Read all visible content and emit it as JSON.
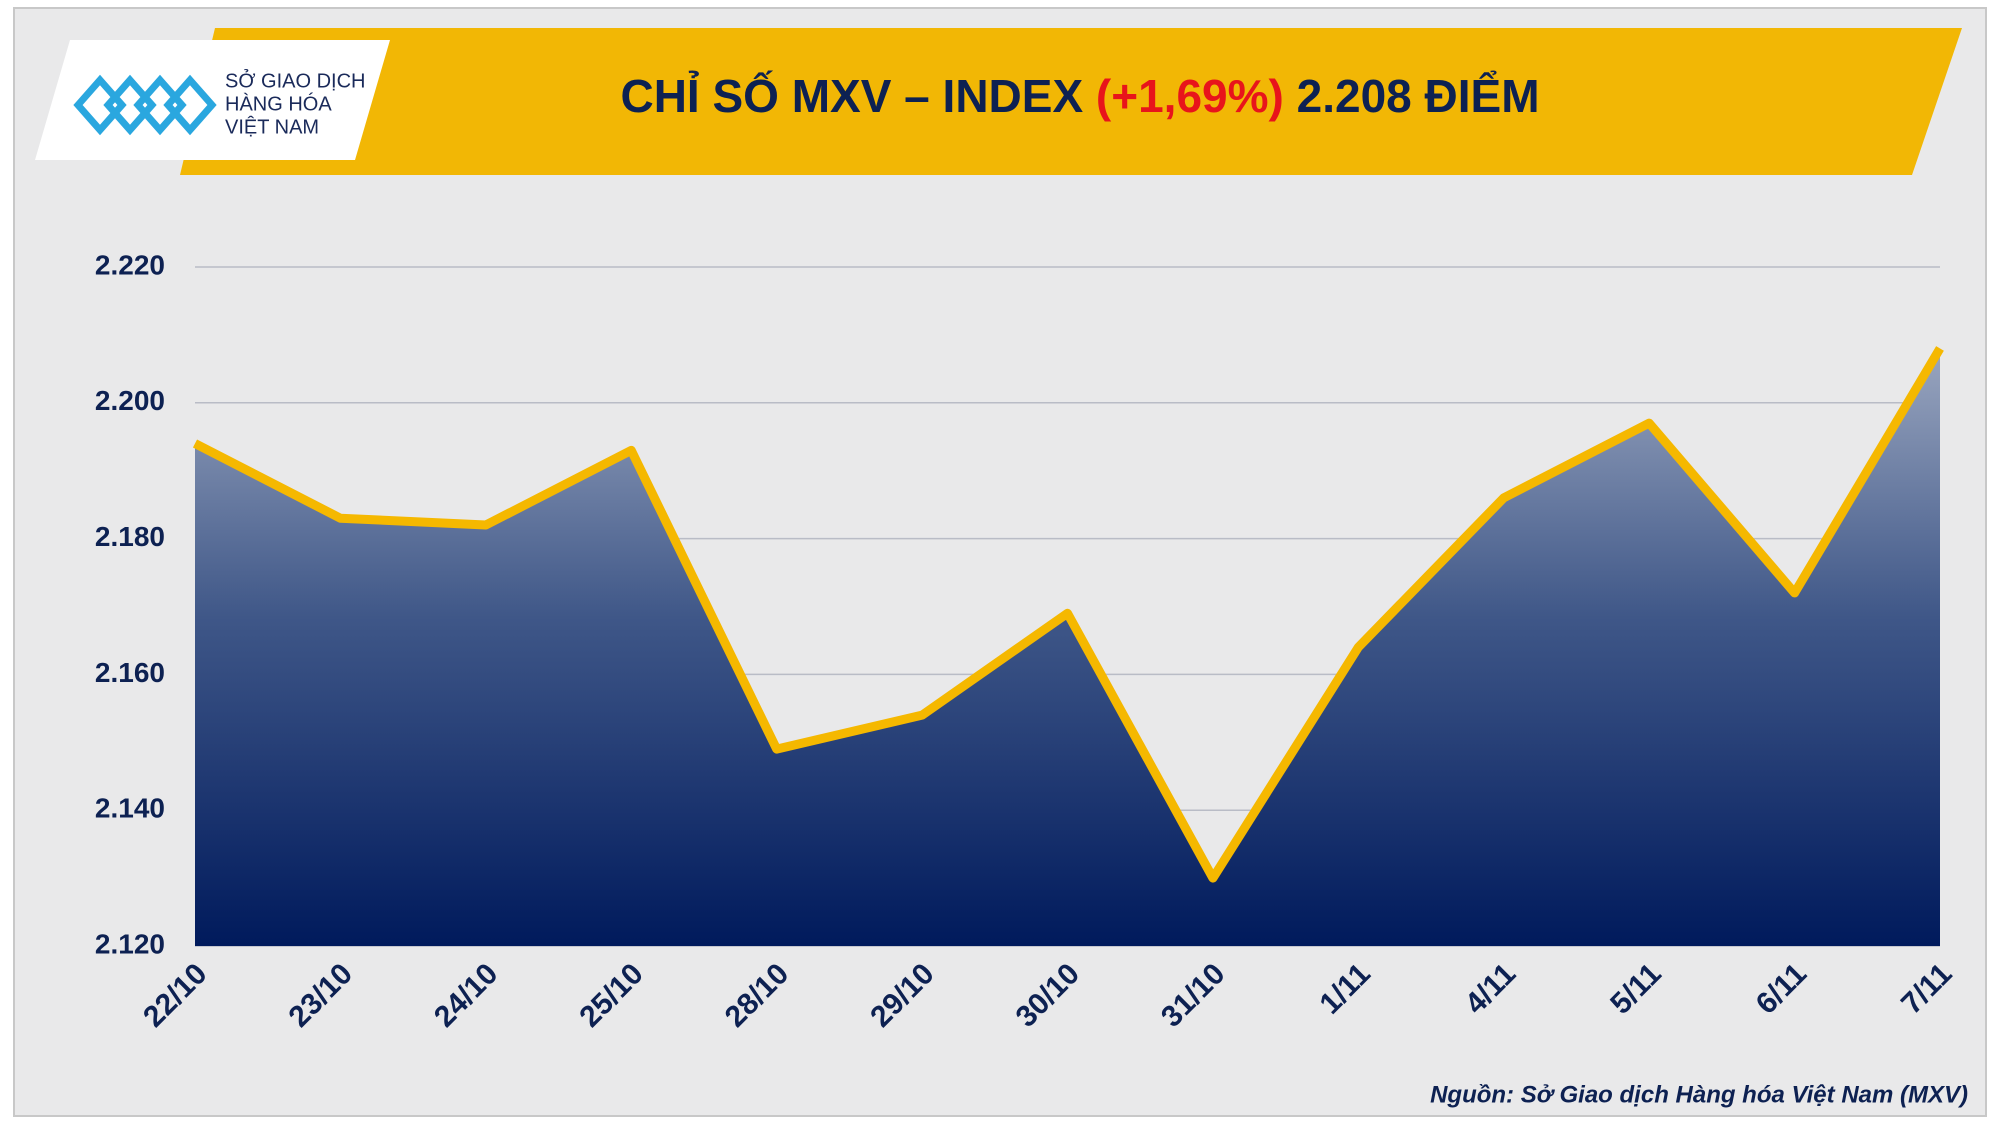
{
  "logo": {
    "lines": [
      "SỞ GIAO DỊCH",
      "HÀNG HÓA",
      "VIỆT NAM"
    ]
  },
  "chart_data": {
    "type": "area",
    "title": "CHỈ SỐ MXV – INDEX",
    "title_change": "(+1,69%)",
    "title_value": "2.208 ĐIỂM",
    "categories": [
      "22/10",
      "23/10",
      "24/10",
      "25/10",
      "28/10",
      "29/10",
      "30/10",
      "31/10",
      "1/11",
      "4/11",
      "5/11",
      "6/11",
      "7/11"
    ],
    "values": [
      2194,
      2183,
      2182,
      2193,
      2149,
      2154,
      2169,
      2130,
      2164,
      2186,
      2197,
      2172,
      2208
    ],
    "color": "#f5b800",
    "ylim": [
      2120,
      2220
    ],
    "yticks": [
      {
        "value": 2120,
        "label": "2.120"
      },
      {
        "value": 2140,
        "label": "2.140"
      },
      {
        "value": 2160,
        "label": "2.160"
      },
      {
        "value": 2180,
        "label": "2.180"
      },
      {
        "value": 2200,
        "label": "2.200"
      },
      {
        "value": 2220,
        "label": "2.220"
      }
    ],
    "grid": true,
    "source": "Nguồn: Sở Giao dịch Hàng hóa Việt Nam (MXV)"
  }
}
